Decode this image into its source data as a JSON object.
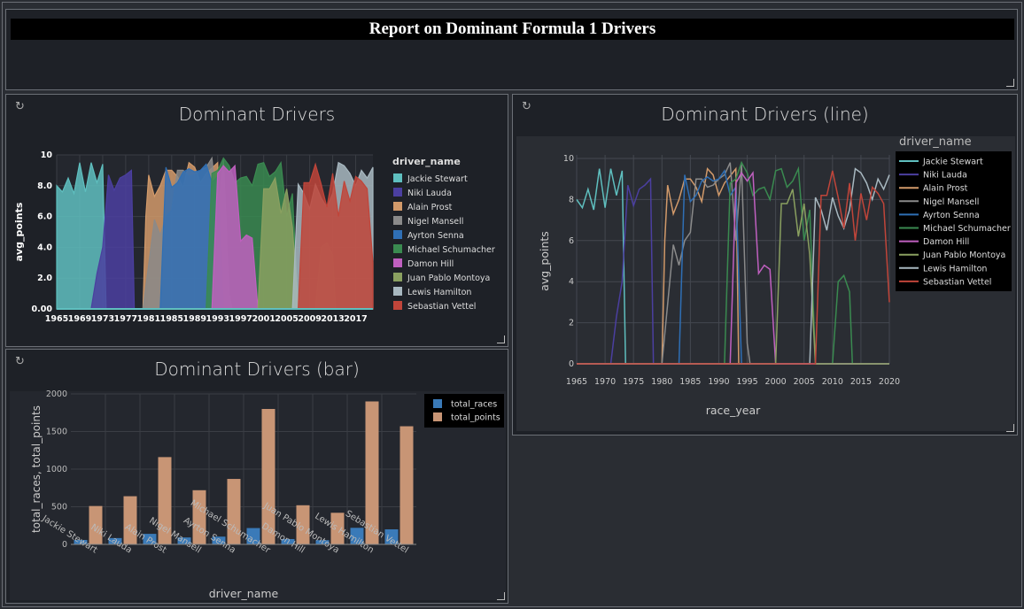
{
  "report": {
    "title": "Report on Dominant Formula 1 Drivers"
  },
  "icons": {
    "refresh": "refresh-icon",
    "resize": "resize-handle-icon"
  },
  "chart_data": [
    {
      "id": "area",
      "type": "area",
      "title": "Dominant Drivers",
      "xlabel": "",
      "ylabel": "avg_points",
      "legend_title": "driver_name",
      "legend_position": "right",
      "xlim": [
        1965,
        2020
      ],
      "ylim": [
        0,
        10
      ],
      "xticks": [
        "1965",
        "1969",
        "1973",
        "1977",
        "1981",
        "1985",
        "1989",
        "1993",
        "1997",
        "2001",
        "2005",
        "2009",
        "2013",
        "2017"
      ],
      "yticks": [
        "0.00",
        "2.0",
        "4.0",
        "6.0",
        "8.0",
        "10"
      ],
      "grid": true,
      "drivers": [
        {
          "name": "Jackie Stewart",
          "color": "#5fbfbf",
          "points": [
            [
              1965,
              8.0
            ],
            [
              1966,
              7.6
            ],
            [
              1967,
              8.5
            ],
            [
              1968,
              7.5
            ],
            [
              1969,
              9.5
            ],
            [
              1970,
              7.6
            ],
            [
              1971,
              9.5
            ],
            [
              1972,
              8.2
            ],
            [
              1973,
              9.4
            ],
            [
              1973.6,
              0
            ]
          ]
        },
        {
          "name": "Niki Lauda",
          "color": "#4b3fa0",
          "points": [
            [
              1971,
              0
            ],
            [
              1972,
              2.3
            ],
            [
              1973,
              4.0
            ],
            [
              1974,
              8.7
            ],
            [
              1975,
              7.7
            ],
            [
              1976,
              8.5
            ],
            [
              1977,
              8.7
            ],
            [
              1978,
              9.0
            ],
            [
              1978.5,
              0
            ]
          ]
        },
        {
          "name": "Alain Prost",
          "color": "#d29a6a",
          "points": [
            [
              1980,
              0
            ],
            [
              1980.5,
              6.0
            ],
            [
              1981,
              8.7
            ],
            [
              1982,
              7.3
            ],
            [
              1983,
              8.0
            ],
            [
              1984,
              9.0
            ],
            [
              1985,
              9.0
            ],
            [
              1986,
              8.6
            ],
            [
              1987,
              7.9
            ],
            [
              1988,
              9.5
            ],
            [
              1989,
              9.2
            ],
            [
              1990,
              8.2
            ],
            [
              1991,
              8.8
            ],
            [
              1993,
              9.5
            ],
            [
              1993.5,
              0
            ]
          ]
        },
        {
          "name": "Nigel Mansell",
          "color": "#8a8a8a",
          "points": [
            [
              1980,
              0
            ],
            [
              1982,
              5.8
            ],
            [
              1983,
              4.8
            ],
            [
              1984,
              6.0
            ],
            [
              1985,
              6.4
            ],
            [
              1986,
              9.0
            ],
            [
              1987,
              9.0
            ],
            [
              1988,
              8.6
            ],
            [
              1989,
              8.7
            ],
            [
              1990,
              9.0
            ],
            [
              1991,
              9.2
            ],
            [
              1992,
              9.8
            ],
            [
              1993,
              6.0
            ],
            [
              1994,
              9.7
            ],
            [
              1995,
              1.0
            ],
            [
              1995.5,
              0
            ]
          ]
        },
        {
          "name": "Ayrton Senna",
          "color": "#2f6fb5",
          "points": [
            [
              1983,
              0
            ],
            [
              1984,
              9.2
            ],
            [
              1985,
              7.9
            ],
            [
              1986,
              8.2
            ],
            [
              1987,
              8.9
            ],
            [
              1988,
              9.1
            ],
            [
              1989,
              8.9
            ],
            [
              1990,
              9.0
            ],
            [
              1991,
              9.4
            ],
            [
              1992,
              8.2
            ],
            [
              1993,
              8.6
            ],
            [
              1994,
              0
            ]
          ]
        },
        {
          "name": "Michael Schumacher",
          "color": "#3a8a50",
          "points": [
            [
              1991,
              0
            ],
            [
              1992,
              8.8
            ],
            [
              1993,
              9.0
            ],
            [
              1994,
              9.8
            ],
            [
              1995,
              9.3
            ],
            [
              1996,
              8.2
            ],
            [
              1997,
              8.5
            ],
            [
              1998,
              8.6
            ],
            [
              1999,
              8.0
            ],
            [
              2000,
              9.4
            ],
            [
              2001,
              9.5
            ],
            [
              2002,
              8.6
            ],
            [
              2003,
              8.9
            ],
            [
              2004,
              9.5
            ],
            [
              2005,
              6.0
            ],
            [
              2006,
              7.5
            ],
            [
              2007,
              0
            ],
            [
              2010,
              0
            ],
            [
              2011,
              4.0
            ],
            [
              2012,
              4.3
            ],
            [
              2013,
              3.5
            ],
            [
              2013.5,
              0
            ]
          ]
        },
        {
          "name": "Damon Hill",
          "color": "#c060c0",
          "points": [
            [
              1992,
              0
            ],
            [
              1993,
              8.8
            ],
            [
              1994,
              9.3
            ],
            [
              1995,
              8.9
            ],
            [
              1996,
              9.3
            ],
            [
              1997,
              4.4
            ],
            [
              1998,
              4.8
            ],
            [
              1999,
              4.6
            ],
            [
              2000,
              0
            ]
          ]
        },
        {
          "name": "Juan Pablo Montoya",
          "color": "#8aa060",
          "points": [
            [
              2000,
              0
            ],
            [
              2001,
              7.8
            ],
            [
              2002,
              7.8
            ],
            [
              2003,
              8.5
            ],
            [
              2004,
              6.2
            ],
            [
              2005,
              7.8
            ],
            [
              2006,
              5.3
            ],
            [
              2007,
              0
            ]
          ]
        },
        {
          "name": "Lewis Hamilton",
          "color": "#a8b8c0",
          "points": [
            [
              2006,
              0
            ],
            [
              2007,
              8.1
            ],
            [
              2008,
              7.5
            ],
            [
              2009,
              6.5
            ],
            [
              2010,
              8.1
            ],
            [
              2011,
              7.2
            ],
            [
              2012,
              6.6
            ],
            [
              2013,
              7.5
            ],
            [
              2014,
              9.5
            ],
            [
              2015,
              9.3
            ],
            [
              2016,
              8.8
            ],
            [
              2017,
              8.0
            ],
            [
              2018,
              9.0
            ],
            [
              2019,
              8.5
            ],
            [
              2020,
              9.2
            ]
          ]
        },
        {
          "name": "Sebastian Vettel",
          "color": "#c0453a",
          "points": [
            [
              2007,
              0
            ],
            [
              2008,
              8.2
            ],
            [
              2009,
              8.2
            ],
            [
              2010,
              9.4
            ],
            [
              2011,
              8.1
            ],
            [
              2012,
              6.6
            ],
            [
              2013,
              8.8
            ],
            [
              2014,
              6.0
            ],
            [
              2015,
              8.3
            ],
            [
              2016,
              7.0
            ],
            [
              2017,
              8.6
            ],
            [
              2018,
              8.3
            ],
            [
              2019,
              7.8
            ],
            [
              2020,
              3.0
            ]
          ]
        }
      ]
    },
    {
      "id": "line",
      "type": "line",
      "title": "Dominant Drivers (line)",
      "xlabel": "race_year",
      "ylabel": "avg_points",
      "legend_title": "driver_name",
      "legend_position": "right",
      "xlim": [
        1965,
        2020
      ],
      "ylim": [
        0,
        10
      ],
      "xticks": [
        "1965",
        "1970",
        "1975",
        "1980",
        "1985",
        "1990",
        "1995",
        "2000",
        "2005",
        "2010",
        "2015",
        "2020"
      ],
      "yticks": [
        "0",
        "2",
        "4",
        "6",
        "8",
        "10"
      ],
      "grid": true
    },
    {
      "id": "bar",
      "type": "bar",
      "title": "Dominant Drivers (bar)",
      "xlabel": "driver_name",
      "ylabel": "total_races, total_points",
      "legend_position": "top-right",
      "ylim": [
        0,
        2000
      ],
      "yticks": [
        "0",
        "500",
        "1000",
        "1500",
        "2000"
      ],
      "categories": [
        "Jackie Stewart",
        "Niki Lauda",
        "Alain Prost",
        "Nigel Mansell",
        "Ayrton Senna",
        "Michael Schumacher",
        "Damon Hill",
        "Juan Pablo Montoya",
        "Lewis Hamilton",
        "Sebastian Vettel"
      ],
      "series": [
        {
          "name": "total_races",
          "color": "#3a7ab8",
          "values": [
            59,
            84,
            140,
            92,
            103,
            217,
            71,
            56,
            220,
            200
          ]
        },
        {
          "name": "total_points",
          "color": "#c89575",
          "values": [
            510,
            640,
            1160,
            720,
            870,
            1800,
            520,
            420,
            1900,
            1570
          ]
        }
      ]
    }
  ]
}
